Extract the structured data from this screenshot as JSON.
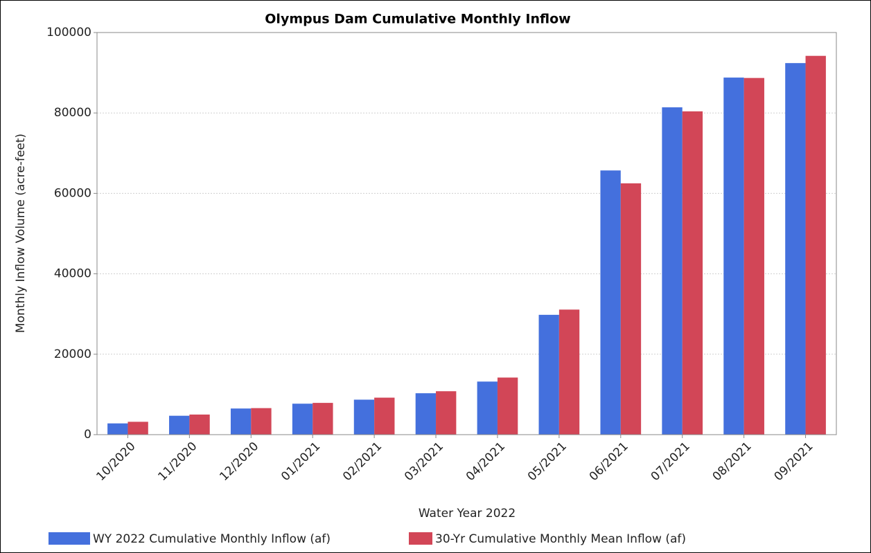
{
  "chart_data": {
    "type": "bar",
    "title": "Olympus Dam Cumulative Monthly Inflow",
    "x_label": "Water Year 2022",
    "y_label": "Monthly Inflow Volume (acre-feet)",
    "categories": [
      "10/2020",
      "11/2020",
      "12/2020",
      "01/2021",
      "02/2021",
      "03/2021",
      "04/2021",
      "05/2021",
      "06/2021",
      "07/2021",
      "08/2021",
      "09/2021"
    ],
    "series": [
      {
        "name": "WY 2022 Cumulative Monthly Inflow (af)",
        "color": "#4470dd",
        "values": [
          2800,
          4700,
          6500,
          7700,
          8700,
          10300,
          13200,
          29800,
          65700,
          81400,
          88800,
          92400
        ]
      },
      {
        "name": "30-Yr Cumulative Monthly Mean Inflow (af)",
        "color": "#d24657",
        "values": [
          3200,
          5000,
          6600,
          7900,
          9200,
          10800,
          14200,
          31100,
          62500,
          80400,
          88700,
          94200
        ]
      }
    ],
    "ylim": [
      0,
      100000
    ],
    "yticks": [
      0,
      20000,
      40000,
      60000,
      80000,
      100000
    ],
    "grid": true,
    "legend": "bottom"
  }
}
